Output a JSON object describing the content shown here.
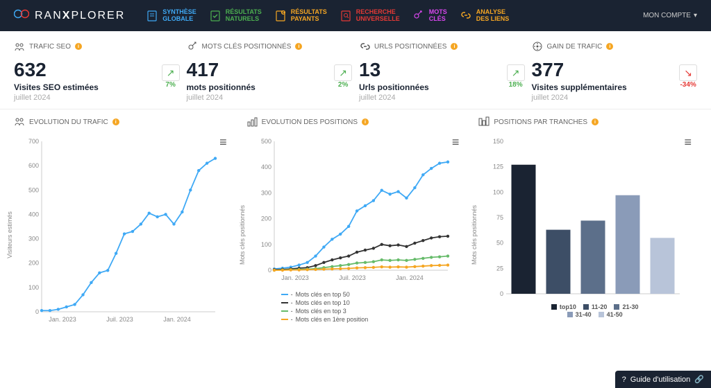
{
  "brand": {
    "pre": "RAN",
    "bold": "X",
    "post": "PLORER"
  },
  "nav": [
    {
      "l1": "SYNTHÈSE",
      "l2": "GLOBALE",
      "color": "#3fa9f5"
    },
    {
      "l1": "RÉSULTATS",
      "l2": "NATURELS",
      "color": "#4caf50"
    },
    {
      "l1": "RÉSULTATS",
      "l2": "PAYANTS",
      "color": "#f5a623"
    },
    {
      "l1": "RECHERCHE",
      "l2": "UNIVERSELLE",
      "color": "#e53935"
    },
    {
      "l1": "MOTS",
      "l2": "CLÉS",
      "color": "#d946ef"
    },
    {
      "l1": "ANALYSE",
      "l2": "DES LIENS",
      "color": "#f5a623"
    }
  ],
  "account": "MON COMPTE",
  "kpis": [
    {
      "title": "TRAFIC SEO",
      "value": "632",
      "label": "Visites SEO estimées",
      "period": "juillet 2024",
      "trend": "7%",
      "dir": "up"
    },
    {
      "title": "MOTS CLÉS POSITIONNÉS",
      "value": "417",
      "label": "mots positionnés",
      "period": "juillet 2024",
      "trend": "2%",
      "dir": "up"
    },
    {
      "title": "URLS POSITIONNÉES",
      "value": "13",
      "label": "Urls positionnées",
      "period": "juillet 2024",
      "trend": "18%",
      "dir": "up"
    },
    {
      "title": "GAIN DE TRAFIC",
      "value": "377",
      "label": "Visites supplémentaires",
      "period": "juillet 2024",
      "trend": "-34%",
      "dir": "down"
    }
  ],
  "chart1": {
    "title": "EVOLUTION DU TRAFIC",
    "ylabel": "Visiteurs estimés",
    "ylim": [
      0,
      700
    ],
    "ytick": 100,
    "xlabels": [
      "Jan. 2023",
      "Juil. 2023",
      "Jan. 2024"
    ],
    "color": "#3fa9f5",
    "data": [
      5,
      5,
      10,
      20,
      30,
      70,
      120,
      160,
      170,
      240,
      320,
      330,
      360,
      405,
      390,
      400,
      360,
      410,
      500,
      580,
      610,
      630
    ]
  },
  "chart2": {
    "title": "EVOLUTION DES POSITIONS",
    "ylabel": "Mots clés positionnés",
    "ylim": [
      0,
      500
    ],
    "ytick": 100,
    "xlabels": [
      "Jan. 2023",
      "Juil. 2023",
      "Jan. 2024"
    ],
    "series": [
      {
        "name": "Mots clés en top 50",
        "color": "#3fa9f5",
        "data": [
          5,
          8,
          12,
          20,
          30,
          55,
          90,
          120,
          140,
          170,
          230,
          250,
          270,
          310,
          295,
          305,
          280,
          320,
          370,
          395,
          415,
          420
        ]
      },
      {
        "name": "Mots clés en top 10",
        "color": "#333333",
        "data": [
          2,
          3,
          5,
          8,
          10,
          18,
          30,
          40,
          48,
          55,
          70,
          78,
          85,
          100,
          95,
          98,
          92,
          105,
          115,
          125,
          130,
          132
        ]
      },
      {
        "name": "Mots clés en top 3",
        "color": "#66bb6a",
        "data": [
          0,
          1,
          2,
          3,
          4,
          6,
          10,
          14,
          18,
          22,
          28,
          30,
          33,
          40,
          38,
          40,
          38,
          42,
          46,
          50,
          52,
          55
        ]
      },
      {
        "name": "Mots clés en 1ère position",
        "color": "#f5a623",
        "data": [
          0,
          0,
          1,
          1,
          2,
          3,
          4,
          5,
          6,
          7,
          9,
          10,
          11,
          13,
          12,
          13,
          12,
          14,
          16,
          18,
          19,
          20
        ]
      }
    ]
  },
  "chart3": {
    "title": "POSITIONS PAR TRANCHES",
    "ylabel": "Mots clés positionnés",
    "ylim": [
      0,
      150
    ],
    "ytick": 25,
    "categories": [
      "top10",
      "11-20",
      "21-30",
      "31-40",
      "41-50"
    ],
    "values": [
      127,
      63,
      72,
      97,
      55
    ],
    "colors": [
      "#1a2332",
      "#3d4e66",
      "#5c6f8a",
      "#8a9bb8",
      "#b8c4d9"
    ],
    "bar_width": 0.7
  },
  "guide": "Guide d'utilisation"
}
